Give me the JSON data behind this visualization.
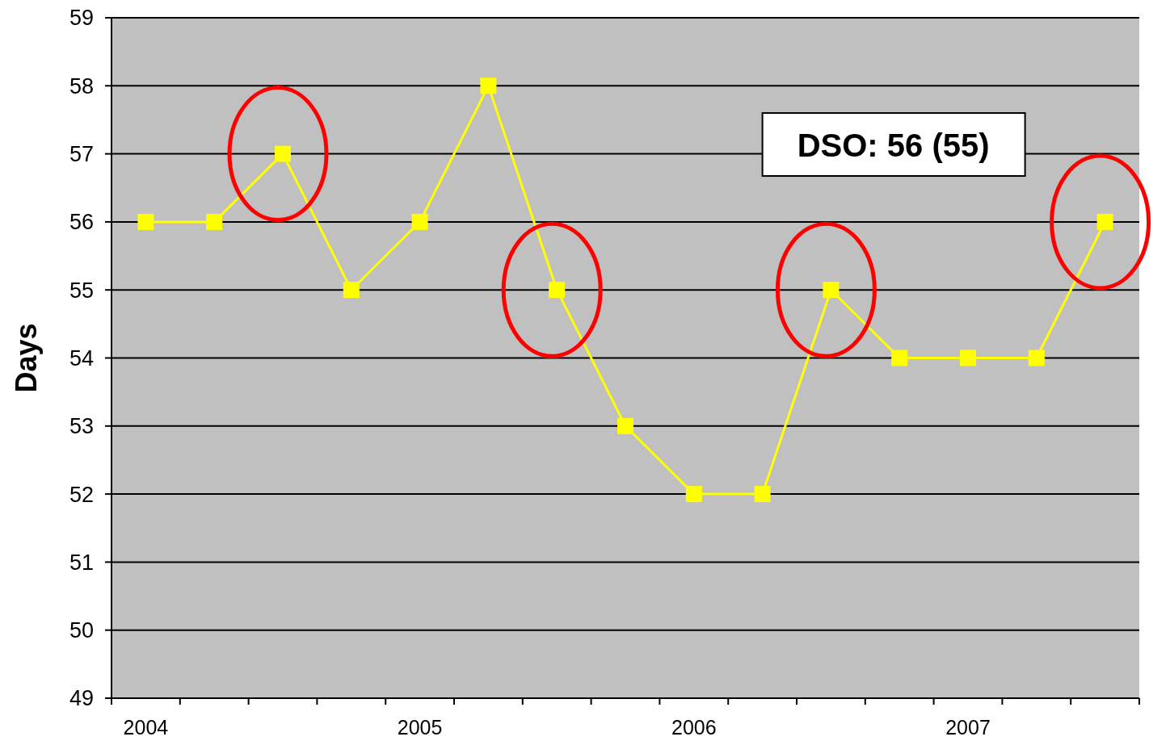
{
  "chart_data": {
    "type": "line",
    "ylabel": "Days",
    "categories": [
      "2004",
      null,
      null,
      null,
      "2005",
      null,
      null,
      null,
      "2006",
      null,
      null,
      null,
      "2007",
      null,
      null
    ],
    "series": [
      {
        "color": "#ffff00",
        "values": [
          56,
          56,
          57,
          55,
          56,
          58,
          55,
          53,
          52,
          52,
          55,
          54,
          54,
          54,
          56
        ]
      }
    ],
    "ylim": [
      49,
      59
    ],
    "yticks": [
      49,
      50,
      51,
      52,
      53,
      54,
      55,
      56,
      57,
      58,
      59
    ],
    "grid": "y",
    "marker": "square",
    "line_style": "solid",
    "annotations": [
      "DSO: 56 (55)"
    ]
  }
}
